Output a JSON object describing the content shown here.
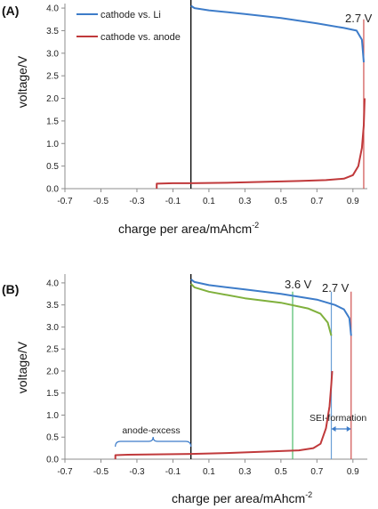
{
  "colors": {
    "cathode_li": "#3d7cc9",
    "cathode_anode": "#c0393b",
    "green": "#7fb03c",
    "marker_green": "#4cbb6a",
    "marker_blue": "#6a9fd6",
    "marker_red": "#d0504f",
    "zero_line": "#000000",
    "bracket": "#3d7cc9"
  },
  "chart_data": [
    {
      "type": "line",
      "panel_label": "(A)",
      "xlabel": "charge per area/mAhcm",
      "xlabel_sup": "-2",
      "ylabel": "voltage/V",
      "xlim": [
        -0.7,
        0.98
      ],
      "ylim": [
        0,
        4.1
      ],
      "xticks": [
        "-0.7",
        "-0.5",
        "-0.3",
        "-0.1",
        "0.1",
        "0.3",
        "0.5",
        "0.7",
        "0.9"
      ],
      "xtick_values": [
        -0.7,
        -0.5,
        -0.3,
        -0.1,
        0.1,
        0.3,
        0.5,
        0.7,
        0.9
      ],
      "yticks": [
        "0.0",
        "0.5",
        "1.0",
        "1.5",
        "2.0",
        "2.5",
        "3.0",
        "3.5",
        "4.0"
      ],
      "ytick_values": [
        0,
        0.5,
        1.0,
        1.5,
        2.0,
        2.5,
        3.0,
        3.5,
        4.0
      ],
      "legend": {
        "position": "top-left",
        "entries": [
          "cathode vs. Li",
          "cathode vs. anode"
        ]
      },
      "annotations": [
        {
          "text": "2.7 V",
          "x": 0.96,
          "color_key": "marker_red"
        }
      ],
      "vertical_lines": [
        {
          "x": 0.0,
          "y_top": 4.2,
          "color_key": "zero_line"
        },
        {
          "x": 0.96,
          "y_top": 3.75,
          "color_key": "marker_red"
        }
      ],
      "series": [
        {
          "name": "cathode vs. Li",
          "color_key": "cathode_li",
          "x": [
            0.0,
            0.02,
            0.1,
            0.3,
            0.5,
            0.7,
            0.85,
            0.92,
            0.95,
            0.96
          ],
          "y": [
            4.05,
            4.0,
            3.95,
            3.87,
            3.78,
            3.66,
            3.56,
            3.5,
            3.3,
            2.8
          ]
        },
        {
          "name": "cathode vs. anode",
          "color_key": "cathode_anode",
          "x": [
            -0.19,
            -0.19,
            -0.1,
            0.0,
            0.2,
            0.4,
            0.6,
            0.75,
            0.85,
            0.9,
            0.93,
            0.95,
            0.96,
            0.965
          ],
          "y": [
            0.0,
            0.11,
            0.12,
            0.12,
            0.13,
            0.15,
            0.17,
            0.19,
            0.22,
            0.3,
            0.5,
            0.9,
            1.4,
            2.0
          ]
        }
      ]
    },
    {
      "type": "line",
      "panel_label": "(B)",
      "xlabel": "charge per area/mAhcm",
      "xlabel_sup": "-2",
      "ylabel": "voltage/V",
      "xlim": [
        -0.7,
        0.98
      ],
      "ylim": [
        0,
        4.2
      ],
      "xticks": [
        "-0.7",
        "-0.5",
        "-0.3",
        "-0.1",
        "0.1",
        "0.3",
        "0.5",
        "0.7",
        "0.9"
      ],
      "xtick_values": [
        -0.7,
        -0.5,
        -0.3,
        -0.1,
        0.1,
        0.3,
        0.5,
        0.7,
        0.9
      ],
      "yticks": [
        "0.0",
        "0.5",
        "1.0",
        "1.5",
        "2.0",
        "2.5",
        "3.0",
        "3.5",
        "4.0"
      ],
      "ytick_values": [
        0,
        0.5,
        1.0,
        1.5,
        2.0,
        2.5,
        3.0,
        3.5,
        4.0
      ],
      "annotations": [
        {
          "text": "3.6 V",
          "x": 0.565,
          "color_key": "marker_green"
        },
        {
          "text": "2.7 V",
          "x": 0.78,
          "color_key": "marker_blue"
        },
        {
          "text": "anode-excess",
          "x_from": -0.42,
          "x_to": 0.0
        },
        {
          "text": "SEI-formation",
          "x_from": 0.78,
          "x_to": 0.89
        }
      ],
      "vertical_lines": [
        {
          "x": 0.0,
          "y_top": 4.2,
          "color_key": "zero_line"
        },
        {
          "x": 0.565,
          "y_top": 3.8,
          "color_key": "marker_green"
        },
        {
          "x": 0.78,
          "y_top": 3.8,
          "color_key": "marker_blue"
        },
        {
          "x": 0.89,
          "y_top": 3.8,
          "color_key": "marker_red"
        }
      ],
      "series": [
        {
          "color_key": "cathode_li",
          "x": [
            0.0,
            0.02,
            0.1,
            0.3,
            0.5,
            0.7,
            0.8,
            0.85,
            0.88,
            0.89
          ],
          "y": [
            4.08,
            4.02,
            3.95,
            3.85,
            3.75,
            3.62,
            3.5,
            3.4,
            3.2,
            2.8
          ]
        },
        {
          "color_key": "green",
          "x": [
            0.0,
            0.02,
            0.1,
            0.3,
            0.5,
            0.65,
            0.72,
            0.76,
            0.78
          ],
          "y": [
            3.98,
            3.9,
            3.8,
            3.65,
            3.55,
            3.42,
            3.3,
            3.1,
            2.8
          ]
        },
        {
          "color_key": "cathode_anode",
          "x": [
            -0.42,
            -0.42,
            -0.35,
            -0.2,
            0.0,
            0.2,
            0.4,
            0.6,
            0.68,
            0.72,
            0.75,
            0.77,
            0.78,
            0.785
          ],
          "y": [
            0.0,
            0.09,
            0.1,
            0.11,
            0.12,
            0.14,
            0.17,
            0.2,
            0.25,
            0.35,
            0.7,
            1.2,
            1.7,
            2.0
          ]
        }
      ]
    }
  ]
}
